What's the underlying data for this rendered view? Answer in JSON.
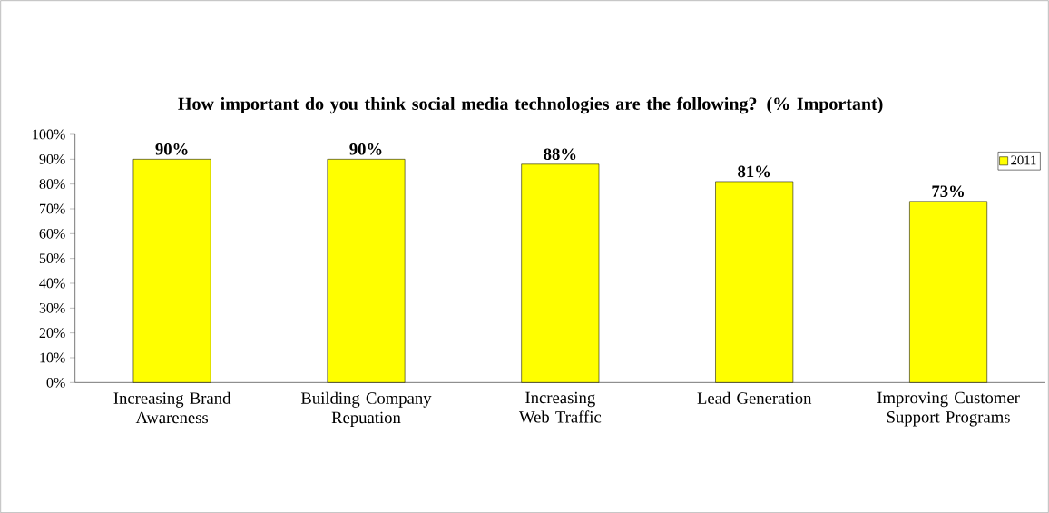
{
  "chart_data": {
    "type": "bar",
    "title": "How important do you think social media technologies are the following? (% Important)",
    "categories": [
      "Increasing Brand Awareness",
      "Building Company Repuation",
      "Increasing Web Traffic",
      "Lead Generation",
      "Improving Customer Support Programs"
    ],
    "series": [
      {
        "name": "2011",
        "color": "#ffff00",
        "values": [
          90,
          90,
          88,
          81,
          73
        ]
      }
    ],
    "value_labels": [
      "90%",
      "90%",
      "88%",
      "81%",
      "73%"
    ],
    "ylim": [
      0,
      100
    ],
    "yticks": [
      {
        "value": 0,
        "label": "0%"
      },
      {
        "value": 10,
        "label": "10%"
      },
      {
        "value": 20,
        "label": "20%"
      },
      {
        "value": 30,
        "label": "30%"
      },
      {
        "value": 40,
        "label": "40%"
      },
      {
        "value": 50,
        "label": "50%"
      },
      {
        "value": 60,
        "label": "60%"
      },
      {
        "value": 70,
        "label": "70%"
      },
      {
        "value": 80,
        "label": "80%"
      },
      {
        "value": 90,
        "label": "90%"
      },
      {
        "value": 100,
        "label": "100%"
      }
    ],
    "legend": "top right"
  }
}
